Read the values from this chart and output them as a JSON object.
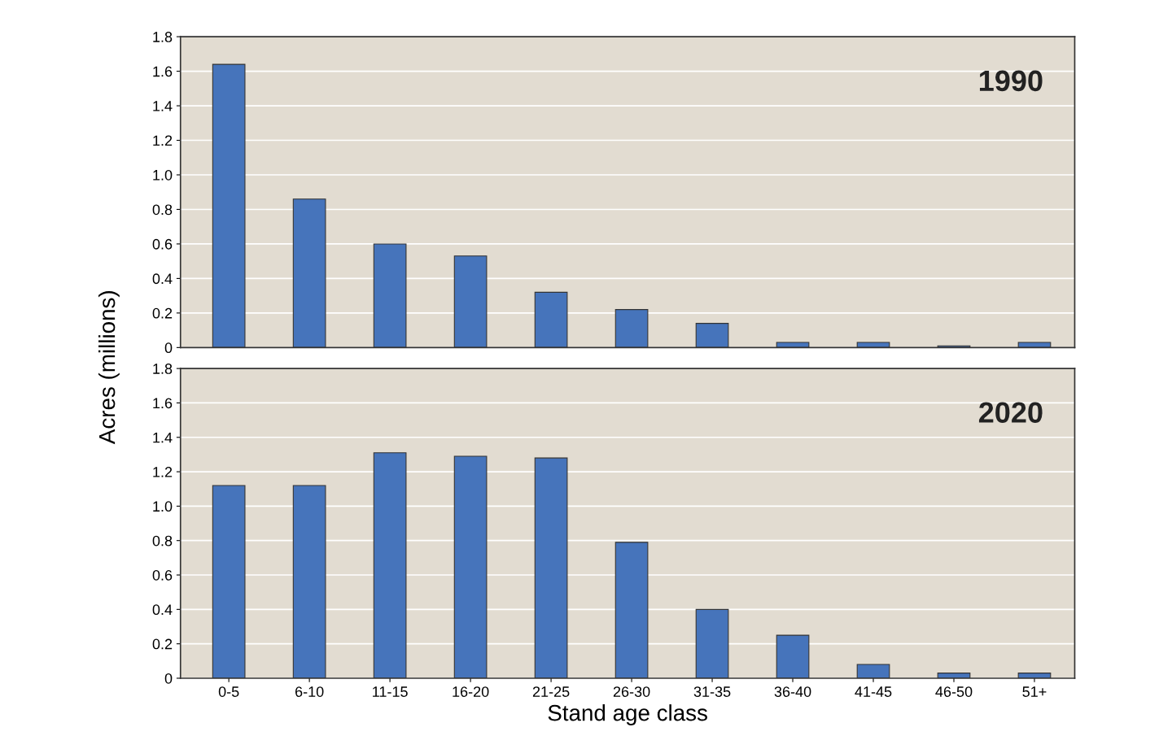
{
  "chart_data": [
    {
      "type": "bar",
      "ylabel": "Acres (millions)",
      "categories": [
        null,
        null,
        null,
        null,
        null,
        null,
        null,
        null,
        null,
        null,
        null
      ],
      "values": [
        1.64,
        0.86,
        0.6,
        0.53,
        0.32,
        0.22,
        0.14,
        0.03,
        0.03,
        0.01,
        0.03
      ],
      "color": "#4674bb",
      "ylim": [
        0,
        1.8
      ],
      "yticks": [
        {
          "value": 0,
          "label": "0"
        },
        {
          "value": 0.2,
          "label": "0.2"
        },
        {
          "value": 0.4,
          "label": "0.4"
        },
        {
          "value": 0.6,
          "label": "0.6"
        },
        {
          "value": 0.8,
          "label": "0.8"
        },
        {
          "value": 1.0,
          "label": "1.0"
        },
        {
          "value": 1.2,
          "label": "1.2"
        },
        {
          "value": 1.4,
          "label": "1.4"
        },
        {
          "value": 1.6,
          "label": "1.6"
        },
        {
          "value": 1.8,
          "label": "1.8"
        }
      ],
      "grid": "y",
      "tick_labels": "y",
      "annotations": [
        "1990"
      ]
    },
    {
      "type": "bar",
      "xlabel": "Stand age class",
      "categories": [
        "0-5",
        "6-10",
        "11-15",
        "16-20",
        "21-25",
        "26-30",
        "31-35",
        "36-40",
        "41-45",
        "46-50",
        "51+"
      ],
      "values": [
        1.12,
        1.12,
        1.31,
        1.29,
        1.28,
        0.79,
        0.4,
        0.25,
        0.08,
        0.03,
        0.03
      ],
      "color": "#4674bb",
      "ylim": [
        0,
        1.8
      ],
      "yticks": [
        {
          "value": 0,
          "label": "0"
        },
        {
          "value": 0.2,
          "label": "0.2"
        },
        {
          "value": 0.4,
          "label": "0.4"
        },
        {
          "value": 0.6,
          "label": "0.6"
        },
        {
          "value": 0.8,
          "label": "0.8"
        },
        {
          "value": 1.0,
          "label": "1.0"
        },
        {
          "value": 1.2,
          "label": "1.2"
        },
        {
          "value": 1.4,
          "label": "1.4"
        },
        {
          "value": 1.6,
          "label": "1.6"
        },
        {
          "value": 1.8,
          "label": "1.8"
        }
      ],
      "grid": "y",
      "annotations": [
        "2020"
      ]
    }
  ]
}
